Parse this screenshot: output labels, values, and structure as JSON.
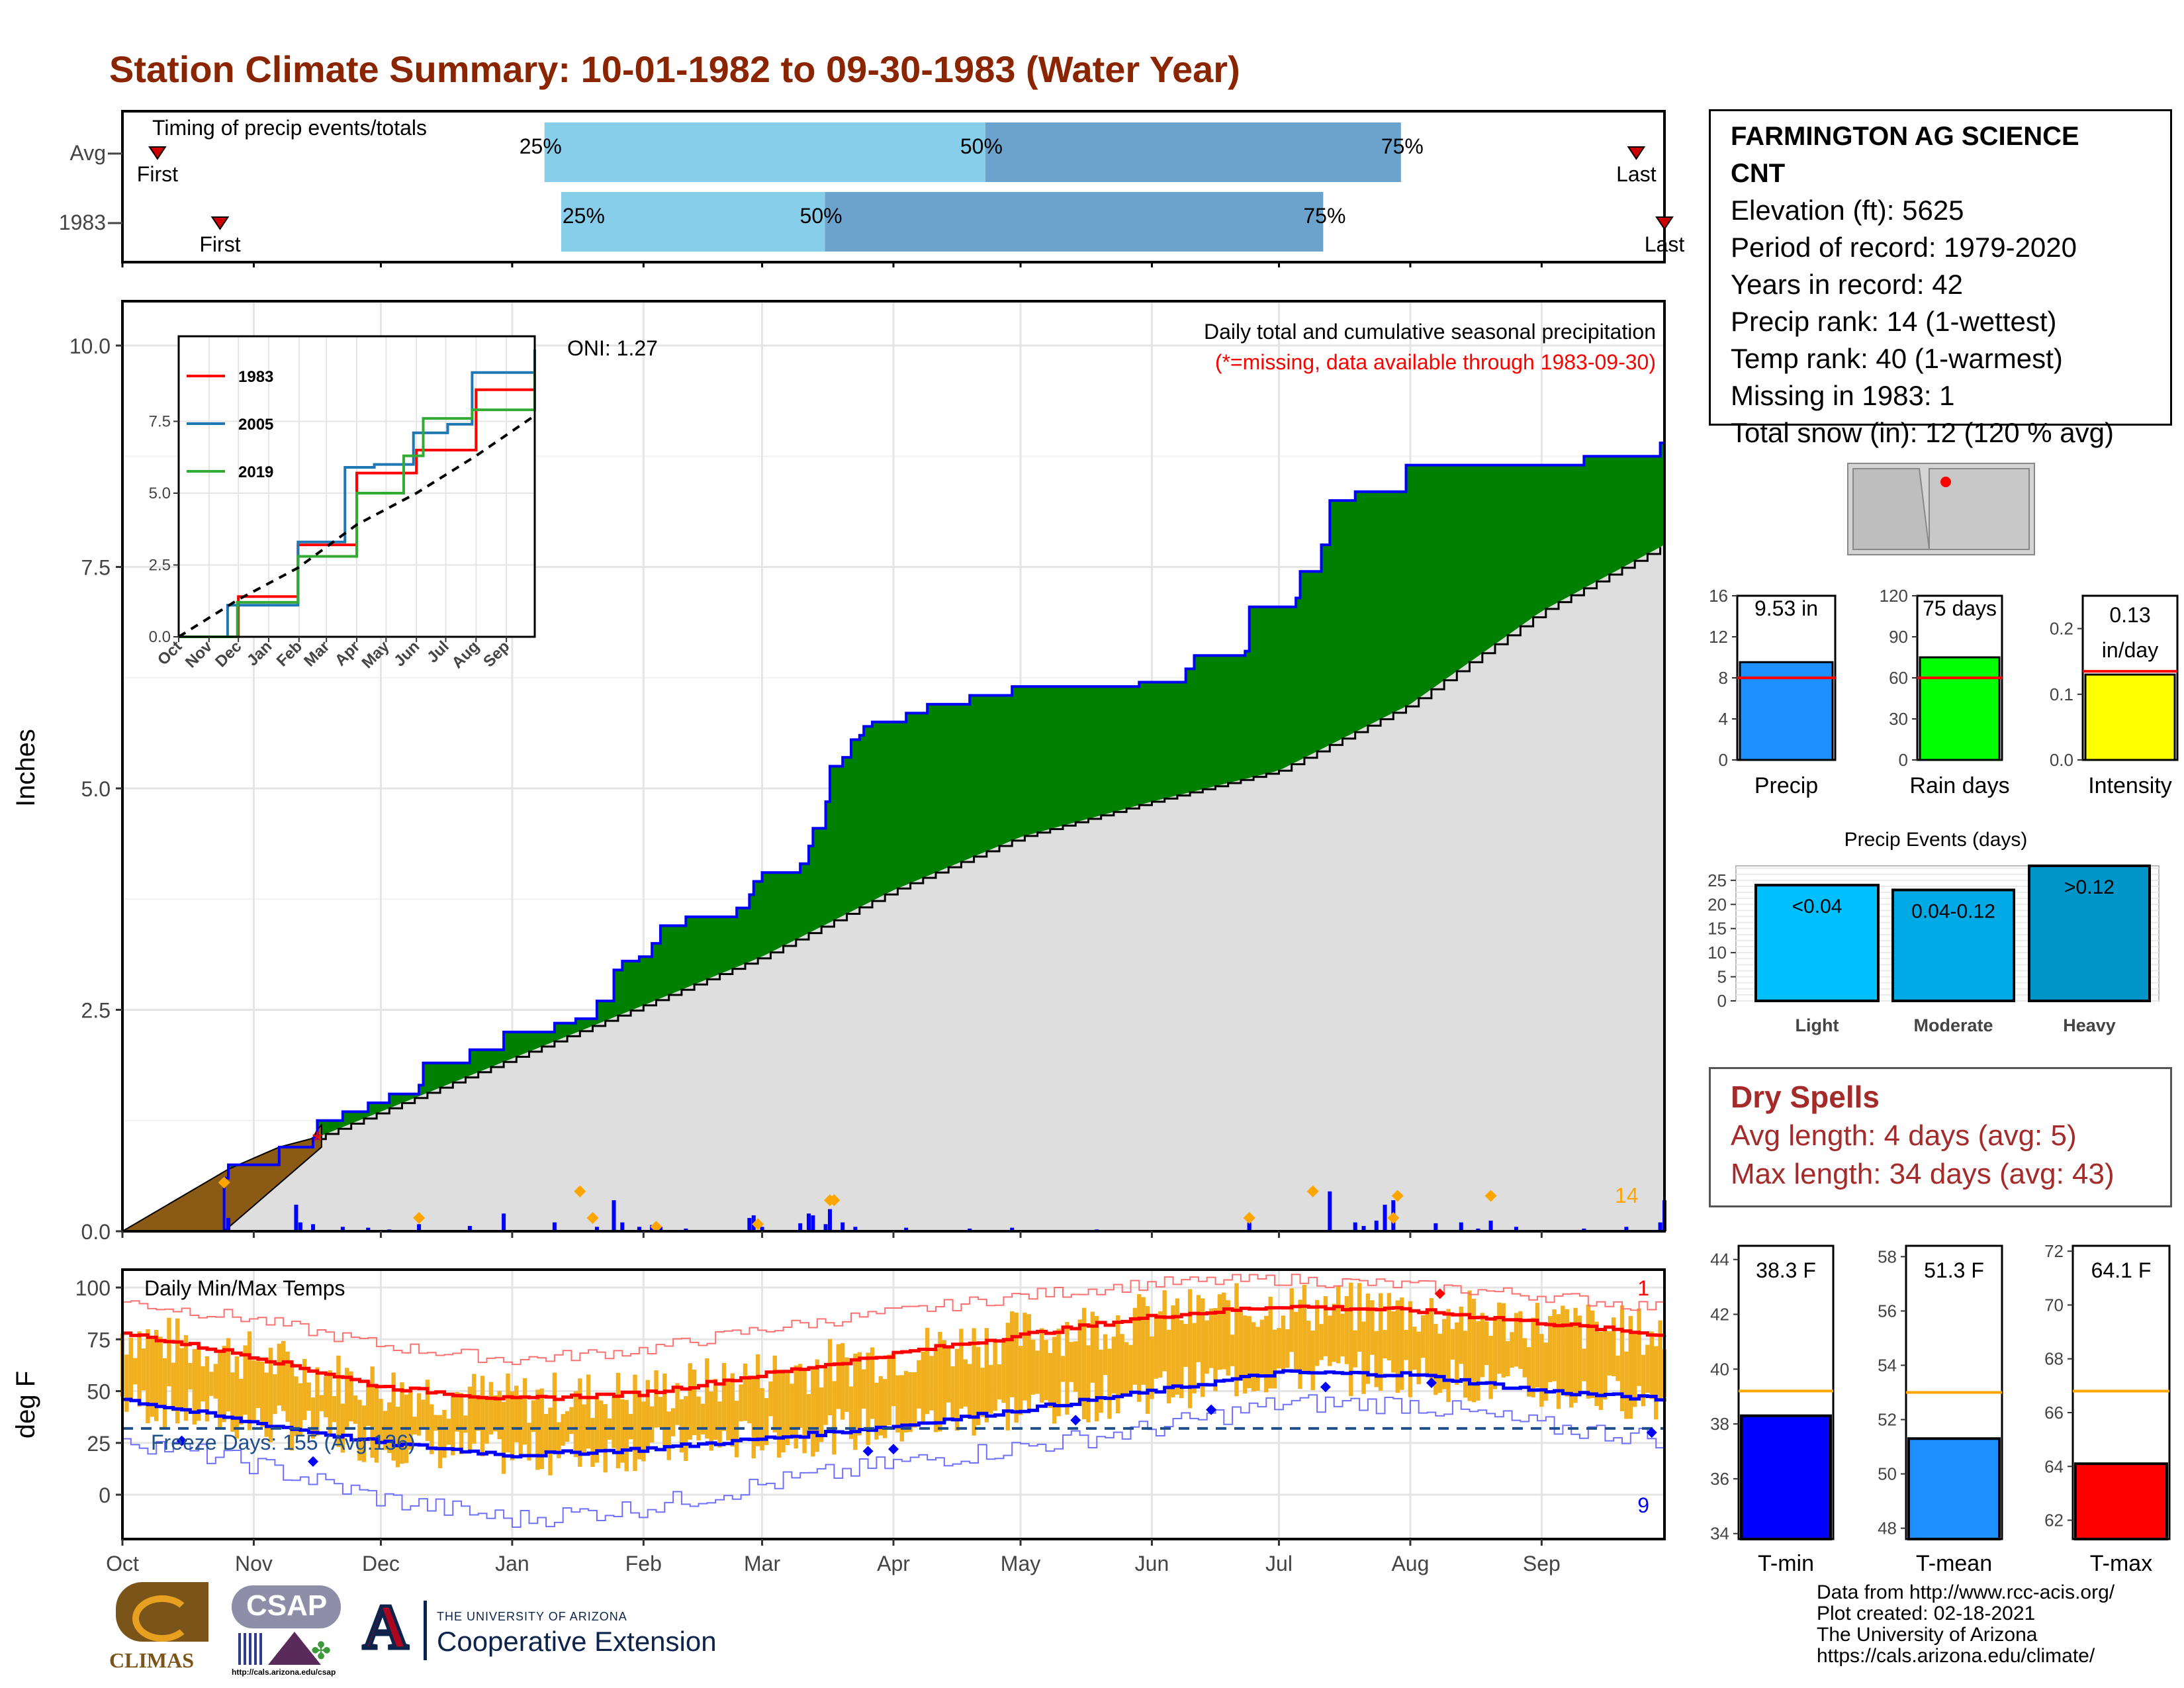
{
  "title": "Station Climate Summary: 10-01-1982 to 09-30-1983 (Water Year)",
  "colors": {
    "title": "#8B2500",
    "cum_green": "#008000",
    "cum_outline": "#0000FF",
    "avg_gray": "#DEDEDE",
    "missing_brown": "#8B5A14",
    "daily_bar": "#0000FF",
    "orange_marker": "#FFA500",
    "tmax": "#FF0000",
    "tmin": "#0000FF",
    "temp_range": "#F0B020",
    "q_light": "#87CEEB",
    "q_dark": "#6BA3CC"
  },
  "info": {
    "station_name": "FARMINGTON AG SCIENCE",
    "station_suffix": "CNT",
    "lines": [
      "Elevation (ft): 5625",
      "Period of record: 1979-2020",
      "Years in record: 42",
      "Precip rank: 14 (1-wettest)",
      "Temp rank: 40 (1-warmest)",
      "Missing in 1983: 1",
      "Total snow (in): 12 (120 % avg)"
    ]
  },
  "dry_spells": {
    "heading": "Dry Spells",
    "avg_length": "Avg length: 4 days (avg: 5)",
    "max_length": "Max length: 34 days (avg: 43)"
  },
  "credits": [
    "Data from http://www.rcc-acis.org/",
    "Plot created: 02-18-2021",
    "The University of Arizona",
    "https://cals.arizona.edu/climate/"
  ],
  "logos": {
    "climas": "CLIMAS",
    "csap": "CSAP",
    "csap_url": "http://cals.arizona.edu/csap",
    "ua_small": "THE UNIVERSITY OF ARIZONA",
    "ua_large": "Cooperative Extension",
    "ua_mark": "A"
  },
  "chart_data": [
    {
      "id": "timing",
      "type": "bar",
      "title": "Timing of precip events/totals",
      "categories": [
        "Avg",
        "1983"
      ],
      "rows": [
        {
          "name": "Avg",
          "first": "First",
          "last": "Last",
          "p25": 0.2737,
          "p50": 0.5596,
          "p75": 0.8291,
          "first_day": 0.0227,
          "last_day": 0.9817
        },
        {
          "name": "1983",
          "first": "First",
          "last": "Last",
          "p25": 0.2845,
          "p50": 0.4556,
          "p75": 0.7787,
          "first_day": 0.0633,
          "last_day": 1.0
        }
      ],
      "labels": {
        "p25": "25%",
        "p50": "50%",
        "p75": "75%"
      }
    },
    {
      "id": "precip",
      "type": "area",
      "title": "Daily total and cumulative seasonal precipitation",
      "subtitle": "(*=missing, data available through 1983-09-30)",
      "annotation": "ONI: 1.27",
      "ylabel": "Inches",
      "ylim": [
        0,
        10.5
      ],
      "yticks": [
        "0.0",
        "2.5",
        "5.0",
        "7.5",
        "10.0"
      ],
      "x_months": [
        "Oct",
        "Nov",
        "Dec",
        "Jan",
        "Feb",
        "Mar",
        "Apr",
        "May",
        "Jun",
        "Jul",
        "Aug",
        "Sep"
      ],
      "event_count_label": "14",
      "cumulative_1983": [
        [
          0,
          0.0
        ],
        [
          24,
          0.6
        ],
        [
          25,
          0.75
        ],
        [
          37,
          0.95
        ],
        [
          45,
          1.05
        ],
        [
          46,
          1.25
        ],
        [
          52,
          1.35
        ],
        [
          58,
          1.45
        ],
        [
          63,
          1.55
        ],
        [
          70,
          1.65
        ],
        [
          71,
          1.9
        ],
        [
          82,
          2.05
        ],
        [
          90,
          2.25
        ],
        [
          102,
          2.35
        ],
        [
          107,
          2.4
        ],
        [
          112,
          2.6
        ],
        [
          116,
          2.95
        ],
        [
          118,
          3.05
        ],
        [
          122,
          3.1
        ],
        [
          125,
          3.25
        ],
        [
          127,
          3.45
        ],
        [
          133,
          3.55
        ],
        [
          145,
          3.65
        ],
        [
          148,
          3.8
        ],
        [
          149,
          3.95
        ],
        [
          151,
          4.05
        ],
        [
          160,
          4.15
        ],
        [
          162,
          4.35
        ],
        [
          163,
          4.55
        ],
        [
          166,
          4.85
        ],
        [
          167,
          5.25
        ],
        [
          170,
          5.35
        ],
        [
          172,
          5.55
        ],
        [
          174,
          5.6
        ],
        [
          175,
          5.7
        ],
        [
          177,
          5.75
        ],
        [
          185,
          5.85
        ],
        [
          190,
          5.95
        ],
        [
          200,
          6.05
        ],
        [
          210,
          6.15
        ],
        [
          240,
          6.2
        ],
        [
          251,
          6.35
        ],
        [
          253,
          6.5
        ],
        [
          265,
          6.55
        ],
        [
          266,
          7.05
        ],
        [
          277,
          7.15
        ],
        [
          278,
          7.45
        ],
        [
          283,
          7.75
        ],
        [
          285,
          8.25
        ],
        [
          291,
          8.35
        ],
        [
          303,
          8.65
        ],
        [
          345,
          8.75
        ],
        [
          363,
          8.9
        ],
        [
          364,
          9.1
        ]
      ],
      "average_curve": [
        [
          0,
          0.0
        ],
        [
          30,
          0.75
        ],
        [
          61,
          1.35
        ],
        [
          92,
          1.95
        ],
        [
          123,
          2.55
        ],
        [
          151,
          3.1
        ],
        [
          182,
          3.85
        ],
        [
          212,
          4.45
        ],
        [
          243,
          4.85
        ],
        [
          273,
          5.2
        ],
        [
          304,
          5.95
        ],
        [
          335,
          7.0
        ],
        [
          364,
          7.75
        ]
      ],
      "missing": [
        [
          0,
          0.0
        ],
        [
          25,
          0.7
        ],
        [
          37,
          0.95
        ],
        [
          45,
          1.05
        ],
        [
          46,
          1.15
        ],
        [
          47,
          1.2
        ]
      ],
      "missing_star_day": 46,
      "daily_precip": [
        [
          25,
          0.15
        ],
        [
          41,
          0.3
        ],
        [
          42,
          0.1
        ],
        [
          45,
          0.08
        ],
        [
          52,
          0.05
        ],
        [
          58,
          0.04
        ],
        [
          63,
          0.02
        ],
        [
          70,
          0.08
        ],
        [
          82,
          0.06
        ],
        [
          90,
          0.2
        ],
        [
          102,
          0.1
        ],
        [
          112,
          0.05
        ],
        [
          116,
          0.35
        ],
        [
          118,
          0.1
        ],
        [
          122,
          0.05
        ],
        [
          125,
          0.07
        ],
        [
          127,
          0.05
        ],
        [
          133,
          0.03
        ],
        [
          148,
          0.15
        ],
        [
          149,
          0.18
        ],
        [
          151,
          0.05
        ],
        [
          160,
          0.09
        ],
        [
          162,
          0.2
        ],
        [
          163,
          0.18
        ],
        [
          166,
          0.08
        ],
        [
          167,
          0.25
        ],
        [
          170,
          0.1
        ],
        [
          173,
          0.05
        ],
        [
          185,
          0.04
        ],
        [
          200,
          0.03
        ],
        [
          210,
          0.04
        ],
        [
          230,
          0.02
        ],
        [
          266,
          0.1
        ],
        [
          266,
          0.08
        ],
        [
          285,
          0.45
        ],
        [
          291,
          0.1
        ],
        [
          293,
          0.06
        ],
        [
          296,
          0.12
        ],
        [
          298,
          0.3
        ],
        [
          300,
          0.35
        ],
        [
          310,
          0.09
        ],
        [
          316,
          0.1
        ],
        [
          320,
          0.03
        ],
        [
          323,
          0.12
        ],
        [
          329,
          0.05
        ],
        [
          345,
          0.03
        ],
        [
          355,
          0.05
        ],
        [
          363,
          0.1
        ],
        [
          364,
          0.35
        ]
      ],
      "orange_markers": [
        [
          24,
          0.55
        ],
        [
          70,
          0.15
        ],
        [
          108,
          0.45
        ],
        [
          111,
          0.15
        ],
        [
          126,
          0.05
        ],
        [
          150,
          0.08
        ],
        [
          167,
          0.35
        ],
        [
          168,
          0.35
        ],
        [
          266,
          0.15
        ],
        [
          281,
          0.45
        ],
        [
          300,
          0.15
        ],
        [
          301,
          0.4
        ],
        [
          323,
          0.4
        ]
      ],
      "inset": {
        "type": "line",
        "xticks": [
          "Oct",
          "Nov",
          "Dec",
          "Jan",
          "Feb",
          "Mar",
          "Apr",
          "May",
          "Jun",
          "Jul",
          "Aug",
          "Sep"
        ],
        "yticks": [
          "0.0",
          "2.5",
          "5.0",
          "7.5"
        ],
        "ylim": [
          0,
          10
        ],
        "series": [
          {
            "name": "1983",
            "color": "#FF0000",
            "values": [
              [
                0,
                0
              ],
              [
                61,
                1.4
              ],
              [
                122,
                3.2
              ],
              [
                182,
                5.7
              ],
              [
                243,
                6.5
              ],
              [
                304,
                8.6
              ],
              [
                364,
                9.4
              ]
            ]
          },
          {
            "name": "2005",
            "color": "#1F77B4",
            "values": [
              [
                0,
                0
              ],
              [
                50,
                1.1
              ],
              [
                122,
                3.3
              ],
              [
                170,
                5.9
              ],
              [
                200,
                6.0
              ],
              [
                240,
                7.1
              ],
              [
                275,
                7.4
              ],
              [
                300,
                9.2
              ],
              [
                364,
                10.0
              ]
            ]
          },
          {
            "name": "2019",
            "color": "#33AA33",
            "values": [
              [
                0,
                0
              ],
              [
                60,
                1.2
              ],
              [
                122,
                2.8
              ],
              [
                182,
                5.0
              ],
              [
                230,
                6.3
              ],
              [
                250,
                7.6
              ],
              [
                300,
                7.9
              ],
              [
                364,
                9.3
              ]
            ]
          },
          {
            "name": "",
            "color": "#000000",
            "dashed": true,
            "values": [
              [
                0,
                0
              ],
              [
                61,
                1.3
              ],
              [
                122,
                2.4
              ],
              [
                182,
                3.9
              ],
              [
                243,
                5.0
              ],
              [
                304,
                6.3
              ],
              [
                364,
                7.7
              ]
            ]
          }
        ]
      }
    },
    {
      "id": "temps",
      "type": "line",
      "title": "Daily Min/Max Temps",
      "ylabel": "deg F",
      "ylim": [
        -20,
        105
      ],
      "yticks": [
        "0",
        "25",
        "50",
        "75",
        "100"
      ],
      "freeze_label": "Freeze Days: 155 (Avg:136)",
      "freeze_line": 32,
      "count_top": "1",
      "count_bottom": "9",
      "x_months": [
        "Oct",
        "Nov",
        "Dec",
        "Jan",
        "Feb",
        "Mar",
        "Apr",
        "May",
        "Jun",
        "Jul",
        "Aug",
        "Sep"
      ],
      "avg_max": [
        [
          0,
          78
        ],
        [
          30,
          67
        ],
        [
          61,
          52
        ],
        [
          92,
          46
        ],
        [
          123,
          49
        ],
        [
          151,
          58
        ],
        [
          182,
          68
        ],
        [
          212,
          77
        ],
        [
          243,
          86
        ],
        [
          273,
          91
        ],
        [
          304,
          89
        ],
        [
          335,
          83
        ],
        [
          364,
          77
        ]
      ],
      "avg_min": [
        [
          0,
          46
        ],
        [
          30,
          35
        ],
        [
          61,
          25
        ],
        [
          92,
          19
        ],
        [
          123,
          22
        ],
        [
          151,
          27
        ],
        [
          182,
          33
        ],
        [
          212,
          41
        ],
        [
          243,
          50
        ],
        [
          273,
          59
        ],
        [
          304,
          58
        ],
        [
          335,
          50
        ],
        [
          364,
          46
        ]
      ],
      "rec_max": [
        [
          0,
          93
        ],
        [
          30,
          85
        ],
        [
          61,
          72
        ],
        [
          92,
          65
        ],
        [
          123,
          70
        ],
        [
          151,
          80
        ],
        [
          182,
          88
        ],
        [
          212,
          96
        ],
        [
          243,
          102
        ],
        [
          273,
          104
        ],
        [
          304,
          101
        ],
        [
          335,
          96
        ],
        [
          364,
          90
        ]
      ],
      "rec_min": [
        [
          0,
          27
        ],
        [
          30,
          15
        ],
        [
          61,
          -2
        ],
        [
          92,
          -12
        ],
        [
          123,
          -6
        ],
        [
          151,
          5
        ],
        [
          182,
          15
        ],
        [
          212,
          23
        ],
        [
          243,
          32
        ],
        [
          273,
          44
        ],
        [
          304,
          44
        ],
        [
          335,
          33
        ],
        [
          364,
          27
        ]
      ]
    },
    {
      "id": "precip_gauges",
      "type": "bar",
      "categories": [
        "Precip",
        "Rain days",
        "Intensity"
      ],
      "values": [
        9.53,
        75,
        0.13
      ],
      "value_labels": [
        "9.53 in",
        "75 days",
        "0.13 in/day"
      ],
      "averages": [
        8,
        60,
        0.135
      ],
      "ylims": [
        [
          0,
          16
        ],
        [
          0,
          120
        ],
        [
          0,
          0.25
        ]
      ],
      "yticks": [
        [
          "0",
          "4",
          "8",
          "12",
          "16"
        ],
        [
          "0",
          "30",
          "60",
          "90",
          "120"
        ],
        [
          "0.0",
          "0.1",
          "0.2"
        ]
      ],
      "colors": [
        "#1E90FF",
        "#00FF00",
        "#FFFF00"
      ]
    },
    {
      "id": "precip_events",
      "type": "bar",
      "title": "Precip Events (days)",
      "categories": [
        "Light",
        "Moderate",
        "Heavy"
      ],
      "value_labels": [
        "<0.04",
        "0.04-0.12",
        ">0.12"
      ],
      "values": [
        24,
        23,
        28
      ],
      "ylim": [
        0,
        28
      ],
      "yticks": [
        "0",
        "5",
        "10",
        "15",
        "20",
        "25"
      ],
      "colors": [
        "#00BFFF",
        "#00AAE4",
        "#0095C8"
      ]
    },
    {
      "id": "temp_gauges",
      "type": "bar",
      "categories": [
        "T-min",
        "T-mean",
        "T-max"
      ],
      "value_labels": [
        "38.3 F",
        "51.3 F",
        "64.1 F"
      ],
      "values": [
        38.3,
        51.3,
        64.1
      ],
      "averages": [
        39.2,
        53.0,
        66.8
      ],
      "ylims": [
        [
          33.8,
          44.5
        ],
        [
          47.6,
          58.4
        ],
        [
          61.3,
          72.2
        ]
      ],
      "yticks": [
        [
          "34",
          "36",
          "38",
          "40",
          "42",
          "44"
        ],
        [
          "48",
          "50",
          "52",
          "54",
          "56",
          "58"
        ],
        [
          "62",
          "64",
          "66",
          "68",
          "70",
          "72"
        ]
      ],
      "colors": [
        "#0000FF",
        "#1E90FF",
        "#FF0000"
      ]
    }
  ]
}
